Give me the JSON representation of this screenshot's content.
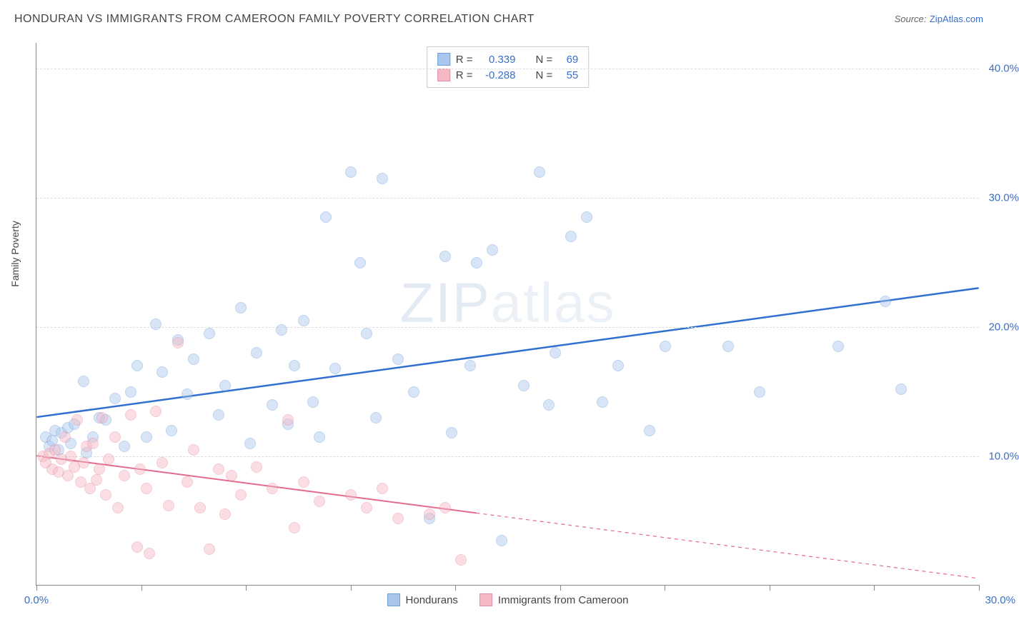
{
  "title": "HONDURAN VS IMMIGRANTS FROM CAMEROON FAMILY POVERTY CORRELATION CHART",
  "source_label": "Source:",
  "source_name": "ZipAtlas.com",
  "watermark": "ZIPatlas",
  "y_axis_label": "Family Poverty",
  "chart": {
    "type": "scatter",
    "xlim": [
      0,
      30
    ],
    "ylim": [
      0,
      42
    ],
    "x_tick_step": 3.33,
    "y_ticks": [
      10,
      20,
      30,
      40
    ],
    "y_tick_labels": [
      "10.0%",
      "20.0%",
      "30.0%",
      "40.0%"
    ],
    "x_tick_labels_shown": {
      "0": "0.0%",
      "30": "30.0%"
    },
    "background_color": "#ffffff",
    "grid_color": "#dddddd",
    "axis_color": "#888888",
    "tick_label_color": "#3b6fc9",
    "marker_radius": 8,
    "marker_opacity": 0.45,
    "series": [
      {
        "name": "Hondurans",
        "color_fill": "#a9c7ec",
        "color_stroke": "#6f9fd8",
        "R": "0.339",
        "N": "69",
        "trend": {
          "x1": 0,
          "y1": 13.0,
          "x2": 30,
          "y2": 23.0,
          "color": "#2f6fd0",
          "width": 2.5,
          "dash_after_x": null
        },
        "points": [
          [
            0.3,
            11.5
          ],
          [
            0.4,
            10.8
          ],
          [
            0.5,
            11.2
          ],
          [
            0.6,
            12.0
          ],
          [
            0.7,
            10.5
          ],
          [
            0.8,
            11.8
          ],
          [
            1.0,
            12.2
          ],
          [
            1.1,
            11.0
          ],
          [
            1.2,
            12.5
          ],
          [
            1.5,
            15.8
          ],
          [
            1.6,
            10.3
          ],
          [
            1.8,
            11.5
          ],
          [
            2.0,
            13.0
          ],
          [
            2.2,
            12.8
          ],
          [
            2.5,
            14.5
          ],
          [
            2.8,
            10.8
          ],
          [
            3.0,
            15.0
          ],
          [
            3.2,
            17.0
          ],
          [
            3.5,
            11.5
          ],
          [
            3.8,
            20.2
          ],
          [
            4.0,
            16.5
          ],
          [
            4.3,
            12.0
          ],
          [
            4.5,
            19.0
          ],
          [
            4.8,
            14.8
          ],
          [
            5.0,
            17.5
          ],
          [
            5.5,
            19.5
          ],
          [
            5.8,
            13.2
          ],
          [
            6.0,
            15.5
          ],
          [
            6.5,
            21.5
          ],
          [
            6.8,
            11.0
          ],
          [
            7.0,
            18.0
          ],
          [
            7.5,
            14.0
          ],
          [
            7.8,
            19.8
          ],
          [
            8.0,
            12.5
          ],
          [
            8.2,
            17.0
          ],
          [
            8.5,
            20.5
          ],
          [
            8.8,
            14.2
          ],
          [
            9.0,
            11.5
          ],
          [
            9.2,
            28.5
          ],
          [
            9.5,
            16.8
          ],
          [
            10.0,
            32.0
          ],
          [
            10.3,
            25.0
          ],
          [
            10.5,
            19.5
          ],
          [
            10.8,
            13.0
          ],
          [
            11.0,
            31.5
          ],
          [
            11.5,
            17.5
          ],
          [
            12.0,
            15.0
          ],
          [
            12.5,
            5.2
          ],
          [
            13.0,
            25.5
          ],
          [
            13.2,
            11.8
          ],
          [
            13.8,
            17.0
          ],
          [
            14.0,
            25.0
          ],
          [
            14.5,
            26.0
          ],
          [
            14.8,
            3.5
          ],
          [
            15.5,
            15.5
          ],
          [
            16.0,
            32.0
          ],
          [
            16.3,
            14.0
          ],
          [
            16.5,
            18.0
          ],
          [
            17.0,
            27.0
          ],
          [
            17.5,
            28.5
          ],
          [
            18.0,
            14.2
          ],
          [
            18.5,
            17.0
          ],
          [
            19.5,
            12.0
          ],
          [
            20.0,
            18.5
          ],
          [
            22.0,
            18.5
          ],
          [
            23.0,
            15.0
          ],
          [
            25.5,
            18.5
          ],
          [
            27.0,
            22.0
          ],
          [
            27.5,
            15.2
          ]
        ]
      },
      {
        "name": "Immigrants from Cameroon",
        "color_fill": "#f5b8c5",
        "color_stroke": "#e88ba2",
        "R": "-0.288",
        "N": "55",
        "trend": {
          "x1": 0,
          "y1": 10.0,
          "x2": 30,
          "y2": 0.5,
          "color": "#e26a8a",
          "width": 2,
          "dash_after_x": 14
        },
        "points": [
          [
            0.2,
            10.0
          ],
          [
            0.3,
            9.5
          ],
          [
            0.4,
            10.2
          ],
          [
            0.5,
            9.0
          ],
          [
            0.6,
            10.5
          ],
          [
            0.7,
            8.8
          ],
          [
            0.8,
            9.8
          ],
          [
            0.9,
            11.5
          ],
          [
            1.0,
            8.5
          ],
          [
            1.1,
            10.0
          ],
          [
            1.2,
            9.2
          ],
          [
            1.3,
            12.8
          ],
          [
            1.4,
            8.0
          ],
          [
            1.5,
            9.5
          ],
          [
            1.6,
            10.8
          ],
          [
            1.7,
            7.5
          ],
          [
            1.8,
            11.0
          ],
          [
            1.9,
            8.2
          ],
          [
            2.0,
            9.0
          ],
          [
            2.1,
            13.0
          ],
          [
            2.2,
            7.0
          ],
          [
            2.3,
            9.8
          ],
          [
            2.5,
            11.5
          ],
          [
            2.6,
            6.0
          ],
          [
            2.8,
            8.5
          ],
          [
            3.0,
            13.2
          ],
          [
            3.2,
            3.0
          ],
          [
            3.3,
            9.0
          ],
          [
            3.5,
            7.5
          ],
          [
            3.6,
            2.5
          ],
          [
            3.8,
            13.5
          ],
          [
            4.0,
            9.5
          ],
          [
            4.2,
            6.2
          ],
          [
            4.5,
            18.8
          ],
          [
            4.8,
            8.0
          ],
          [
            5.0,
            10.5
          ],
          [
            5.2,
            6.0
          ],
          [
            5.5,
            2.8
          ],
          [
            5.8,
            9.0
          ],
          [
            6.0,
            5.5
          ],
          [
            6.2,
            8.5
          ],
          [
            6.5,
            7.0
          ],
          [
            7.0,
            9.2
          ],
          [
            7.5,
            7.5
          ],
          [
            8.0,
            12.8
          ],
          [
            8.2,
            4.5
          ],
          [
            8.5,
            8.0
          ],
          [
            9.0,
            6.5
          ],
          [
            10.0,
            7.0
          ],
          [
            10.5,
            6.0
          ],
          [
            11.0,
            7.5
          ],
          [
            11.5,
            5.2
          ],
          [
            12.5,
            5.5
          ],
          [
            13.0,
            6.0
          ],
          [
            13.5,
            2.0
          ]
        ]
      }
    ]
  },
  "legend_top": {
    "r_label": "R =",
    "n_label": "N ="
  },
  "legend_bottom_labels": [
    "Hondurans",
    "Immigrants from Cameroon"
  ]
}
